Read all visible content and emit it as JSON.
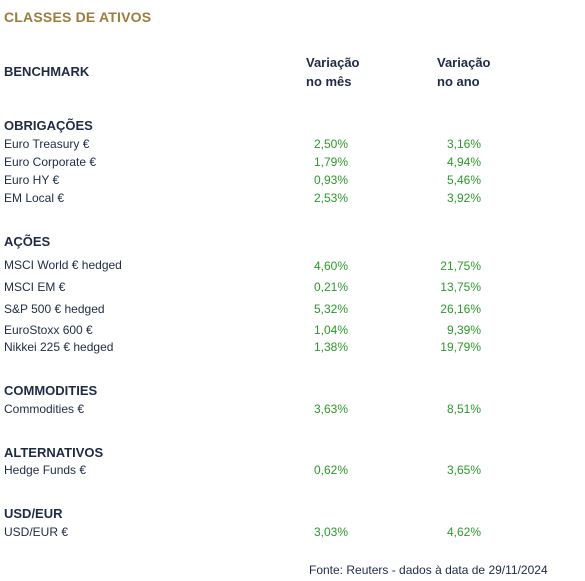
{
  "title": "CLASSES DE ATIVOS",
  "benchmark_label": "BENCHMARK",
  "columns": {
    "month": [
      "Variação",
      "no mês"
    ],
    "year": [
      "Variação",
      "no ano"
    ]
  },
  "sections": [
    {
      "name": "OBRIGAÇÕES",
      "rows": [
        {
          "label": "Euro Treasury €",
          "month": "2,50%",
          "year": "3,16%"
        },
        {
          "label": "Euro Corporate €",
          "month": "1,79%",
          "year": "4,94%"
        },
        {
          "label": "Euro HY €",
          "month": "0,93%",
          "year": "5,46%"
        },
        {
          "label": "EM Local €",
          "month": "2,53%",
          "year": "3,92%"
        }
      ]
    },
    {
      "name": "AÇÕES",
      "rows": [
        {
          "label": "MSCI World € hedged",
          "month": "4,60%",
          "year": "21,75%"
        },
        {
          "label": "MSCI EM €",
          "month": "0,21%",
          "year": "13,75%"
        },
        {
          "label": "S&P 500 € hedged",
          "month": "5,32%",
          "year": "26,16%"
        },
        {
          "label": "EuroStoxx 600 €",
          "month": "1,04%",
          "year": "9,39%"
        },
        {
          "label": "Nikkei 225 € hedged",
          "month": "1,38%",
          "year": "19,79%"
        }
      ]
    },
    {
      "name": "COMMODITIES",
      "rows": [
        {
          "label": "Commodities €",
          "month": "3,63%",
          "year": "8,51%"
        }
      ]
    },
    {
      "name": "ALTERNATIVOS",
      "rows": [
        {
          "label": "Hedge Funds €",
          "month": "0,62%",
          "year": "3,65%"
        }
      ]
    },
    {
      "name": "USD/EUR",
      "rows": [
        {
          "label": "USD/EUR €",
          "month": "3,03%",
          "year": "4,62%"
        }
      ]
    }
  ],
  "source": "Fonte: Reuters - dados à data de 29/11/2024",
  "colors": {
    "title": "#9a7d3c",
    "text": "#1f2a44",
    "value": "#2a9a2a"
  }
}
